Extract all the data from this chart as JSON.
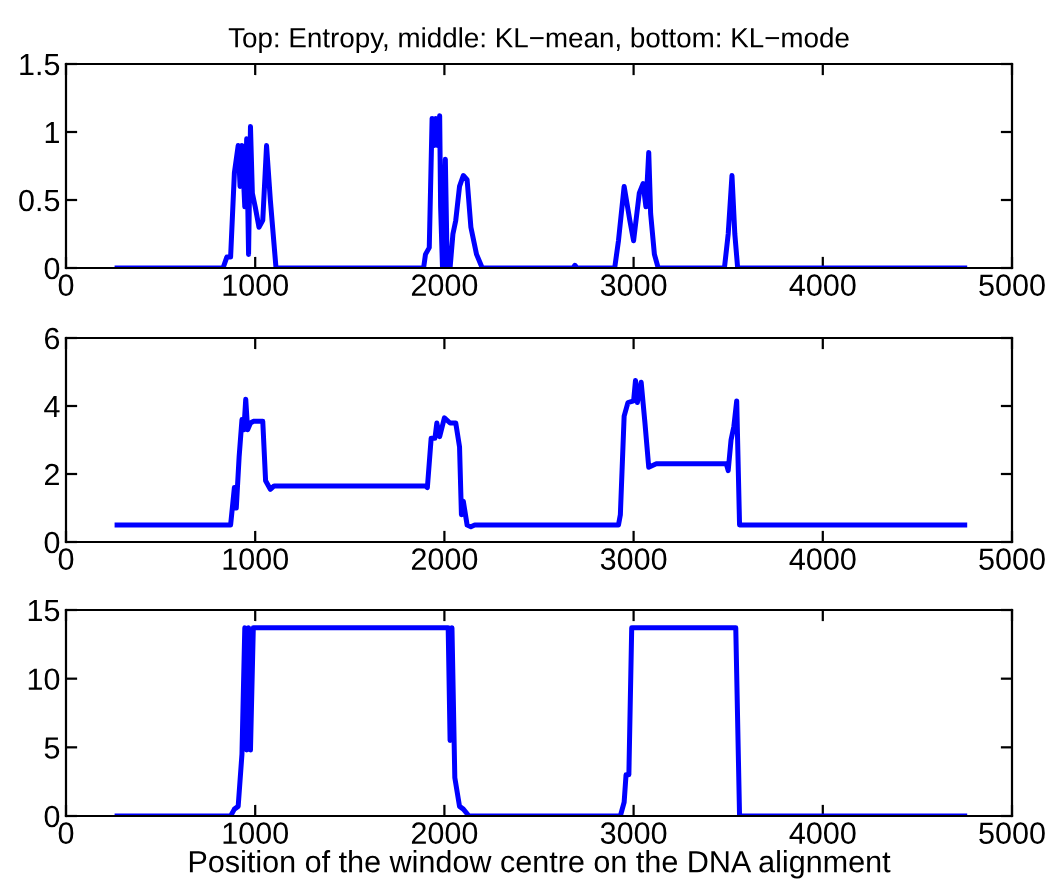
{
  "chart_data": [
    {
      "type": "line",
      "title": "Top: Entropy, middle: KL−mean, bottom: KL−mode",
      "xlim": [
        0,
        5000
      ],
      "xticks": [
        0,
        1000,
        2000,
        3000,
        4000,
        5000
      ],
      "ylim": [
        0,
        1.5
      ],
      "yticks": [
        0,
        0.5,
        1,
        1.5
      ],
      "grid": false,
      "legend": false,
      "series": [
        {
          "color": "#0000ff",
          "x": [
            270,
            830,
            850,
            870,
            890,
            910,
            920,
            930,
            945,
            955,
            965,
            975,
            985,
            1000,
            1020,
            1040,
            1060,
            1080,
            1110,
            1890,
            1900,
            1920,
            1935,
            1945,
            1955,
            1965,
            1975,
            1980,
            1990,
            2005,
            2015,
            2030,
            2045,
            2060,
            2080,
            2100,
            2120,
            2140,
            2170,
            2200,
            2680,
            2690,
            2700,
            2900,
            2920,
            2950,
            2980,
            3000,
            3030,
            3050,
            3065,
            3080,
            3090,
            3110,
            3130,
            3480,
            3500,
            3520,
            3535,
            3550,
            4750
          ],
          "values": [
            0,
            0,
            0.08,
            0.08,
            0.7,
            0.9,
            0.6,
            0.9,
            0.45,
            0.95,
            0.1,
            1.04,
            0.55,
            0.45,
            0.3,
            0.35,
            0.9,
            0.5,
            0,
            0,
            0.1,
            0.15,
            1.1,
            0.9,
            1.1,
            0.9,
            1.12,
            0.45,
            0,
            0.8,
            0,
            0,
            0.25,
            0.35,
            0.6,
            0.68,
            0.65,
            0.3,
            0.1,
            0,
            0,
            0.02,
            0,
            0,
            0.2,
            0.6,
            0.35,
            0.2,
            0.55,
            0.62,
            0.45,
            0.85,
            0.4,
            0.1,
            0,
            0,
            0.25,
            0.68,
            0.25,
            0,
            0
          ]
        }
      ]
    },
    {
      "type": "line",
      "xlim": [
        0,
        5000
      ],
      "xticks": [
        0,
        1000,
        2000,
        3000,
        4000,
        5000
      ],
      "ylim": [
        0,
        6
      ],
      "yticks": [
        0,
        2,
        4,
        6
      ],
      "grid": false,
      "legend": false,
      "series": [
        {
          "color": "#0000ff",
          "x": [
            270,
            870,
            890,
            900,
            915,
            930,
            940,
            950,
            960,
            975,
            990,
            1040,
            1055,
            1080,
            1100,
            1900,
            1910,
            1930,
            1950,
            1960,
            1975,
            2000,
            2030,
            2060,
            2080,
            2090,
            2100,
            2120,
            2140,
            2160,
            2920,
            2930,
            2950,
            2970,
            3000,
            3010,
            3020,
            3040,
            3060,
            3080,
            3100,
            3120,
            3490,
            3500,
            3515,
            3530,
            3545,
            3560,
            4750
          ],
          "values": [
            0.5,
            0.5,
            1.6,
            1,
            2.5,
            3.6,
            3.3,
            4.2,
            3.3,
            3.5,
            3.55,
            3.55,
            1.8,
            1.55,
            1.65,
            1.65,
            1.6,
            3.05,
            3.05,
            3.5,
            3.1,
            3.65,
            3.5,
            3.5,
            2.8,
            0.8,
            1.2,
            0.5,
            0.45,
            0.5,
            0.5,
            0.8,
            3.7,
            4.1,
            4.15,
            4.75,
            4.1,
            4.7,
            3.5,
            2.2,
            2.25,
            2.3,
            2.3,
            2.1,
            3,
            3.4,
            4.15,
            0.5,
            0.5
          ]
        }
      ]
    },
    {
      "type": "line",
      "xlabel": "Position of the window centre on the DNA alignment",
      "xlim": [
        0,
        5000
      ],
      "xticks": [
        0,
        1000,
        2000,
        3000,
        4000,
        5000
      ],
      "ylim": [
        0,
        15
      ],
      "yticks": [
        0,
        5,
        10,
        15
      ],
      "grid": false,
      "legend": false,
      "series": [
        {
          "color": "#0000ff",
          "x": [
            270,
            870,
            890,
            910,
            930,
            945,
            955,
            965,
            975,
            990,
            2020,
            2030,
            2040,
            2055,
            2080,
            2100,
            2130,
            2930,
            2950,
            2960,
            2975,
            2990,
            3540,
            3560,
            4750
          ],
          "values": [
            0,
            0,
            0.5,
            0.7,
            4.5,
            13.7,
            4.8,
            13.7,
            4.8,
            13.7,
            13.7,
            5.5,
            13.7,
            2.8,
            0.7,
            0.5,
            0,
            0,
            1,
            3,
            3,
            13.7,
            13.7,
            0,
            0
          ]
        }
      ]
    }
  ]
}
